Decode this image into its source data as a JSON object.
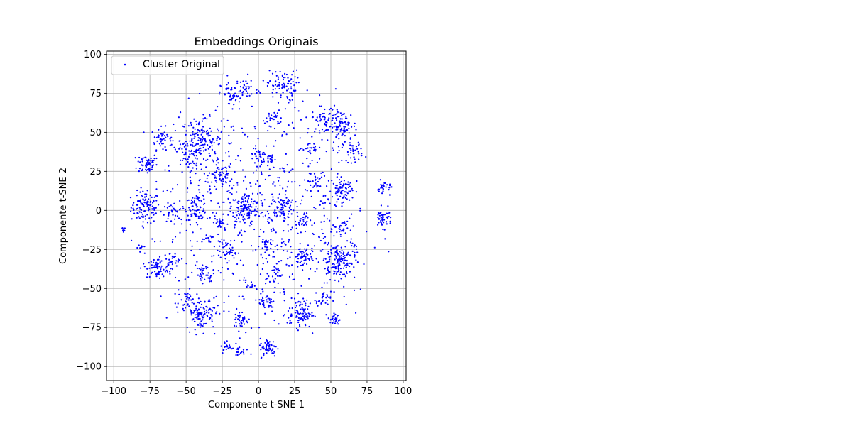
{
  "chart_data": {
    "type": "scatter",
    "title": "Embeddings Originais",
    "xlabel": "Componente t-SNE 1",
    "ylabel": "Componente t-SNE 2",
    "xlim": [
      -105,
      102
    ],
    "ylim": [
      -109,
      102
    ],
    "xticks": [
      -100,
      -75,
      -50,
      -25,
      0,
      25,
      50,
      75,
      100
    ],
    "yticks": [
      -100,
      -75,
      -50,
      -25,
      0,
      25,
      50,
      75,
      100
    ],
    "xtick_labels": [
      "−100",
      "−75",
      "−50",
      "−25",
      "0",
      "25",
      "50",
      "75",
      "100"
    ],
    "ytick_labels": [
      "−100",
      "−75",
      "−50",
      "−25",
      "0",
      "25",
      "50",
      "75",
      "100"
    ],
    "grid": true,
    "legend_position": "top-left",
    "series": [
      {
        "name": "Cluster Original",
        "color": "#0000ff",
        "clusters": [
          {
            "x": -78,
            "y": 2,
            "n": 110,
            "spread": 5
          },
          {
            "x": -77,
            "y": 30,
            "n": 60,
            "spread": 3.5
          },
          {
            "x": -67,
            "y": 46,
            "n": 45,
            "spread": 3.5
          },
          {
            "x": -40,
            "y": 45,
            "n": 150,
            "spread": 7
          },
          {
            "x": -48,
            "y": 32,
            "n": 40,
            "spread": 5
          },
          {
            "x": -26,
            "y": 22,
            "n": 60,
            "spread": 4
          },
          {
            "x": -43,
            "y": 2,
            "n": 70,
            "spread": 4
          },
          {
            "x": -60,
            "y": -2,
            "n": 30,
            "spread": 3
          },
          {
            "x": -9,
            "y": 1,
            "n": 110,
            "spread": 5
          },
          {
            "x": 16,
            "y": 2,
            "n": 80,
            "spread": 4.5
          },
          {
            "x": 16,
            "y": 80,
            "n": 80,
            "spread": 5
          },
          {
            "x": -18,
            "y": 74,
            "n": 50,
            "spread": 4
          },
          {
            "x": -8,
            "y": 78,
            "n": 25,
            "spread": 3
          },
          {
            "x": 10,
            "y": 59,
            "n": 25,
            "spread": 2.5
          },
          {
            "x": 45,
            "y": 58,
            "n": 50,
            "spread": 4
          },
          {
            "x": 58,
            "y": 54,
            "n": 90,
            "spread": 5
          },
          {
            "x": 65,
            "y": 38,
            "n": 40,
            "spread": 3.5
          },
          {
            "x": 58,
            "y": 13,
            "n": 70,
            "spread": 3.5
          },
          {
            "x": 87,
            "y": 14,
            "n": 25,
            "spread": 2.5
          },
          {
            "x": 86,
            "y": -5,
            "n": 50,
            "spread": 3
          },
          {
            "x": 58,
            "y": -12,
            "n": 30,
            "spread": 3
          },
          {
            "x": 55,
            "y": -32,
            "n": 160,
            "spread": 6
          },
          {
            "x": 30,
            "y": -30,
            "n": 60,
            "spread": 3.5
          },
          {
            "x": 30,
            "y": -7,
            "n": 25,
            "spread": 2.5
          },
          {
            "x": 45,
            "y": -57,
            "n": 25,
            "spread": 2.5
          },
          {
            "x": 52,
            "y": -70,
            "n": 30,
            "spread": 2
          },
          {
            "x": 29,
            "y": -66,
            "n": 90,
            "spread": 4.5
          },
          {
            "x": 6,
            "y": -59,
            "n": 40,
            "spread": 3
          },
          {
            "x": 7,
            "y": -88,
            "n": 60,
            "spread": 3
          },
          {
            "x": -12,
            "y": -70,
            "n": 35,
            "spread": 2.5
          },
          {
            "x": -22,
            "y": -88,
            "n": 25,
            "spread": 2.5
          },
          {
            "x": -12,
            "y": -90,
            "n": 20,
            "spread": 2.5
          },
          {
            "x": -40,
            "y": -66,
            "n": 110,
            "spread": 5
          },
          {
            "x": -50,
            "y": -57,
            "n": 20,
            "spread": 2
          },
          {
            "x": -37,
            "y": -41,
            "n": 30,
            "spread": 3
          },
          {
            "x": -70,
            "y": -37,
            "n": 60,
            "spread": 3.5
          },
          {
            "x": -60,
            "y": -32,
            "n": 25,
            "spread": 2.5
          },
          {
            "x": -22,
            "y": -26,
            "n": 40,
            "spread": 3
          },
          {
            "x": -27,
            "y": -8,
            "n": 25,
            "spread": 2
          },
          {
            "x": -35,
            "y": -18,
            "n": 15,
            "spread": 2
          },
          {
            "x": 5,
            "y": -21,
            "n": 20,
            "spread": 2
          },
          {
            "x": 12,
            "y": -40,
            "n": 20,
            "spread": 2.5
          },
          {
            "x": 0,
            "y": 35,
            "n": 25,
            "spread": 3
          },
          {
            "x": 8,
            "y": 33,
            "n": 20,
            "spread": 2
          },
          {
            "x": -97,
            "y": 8,
            "n": 15,
            "spread": 1
          },
          {
            "x": -94,
            "y": -12,
            "n": 12,
            "spread": 1
          },
          {
            "x": -81,
            "y": -25,
            "n": 10,
            "spread": 1.5
          },
          {
            "x": 40,
            "y": 18,
            "n": 25,
            "spread": 3
          },
          {
            "x": 35,
            "y": 40,
            "n": 20,
            "spread": 3
          },
          {
            "x": -6,
            "y": -47,
            "n": 12,
            "spread": 2
          },
          {
            "x": 0,
            "y": 0,
            "n": 700,
            "spread": 40
          }
        ]
      }
    ]
  }
}
